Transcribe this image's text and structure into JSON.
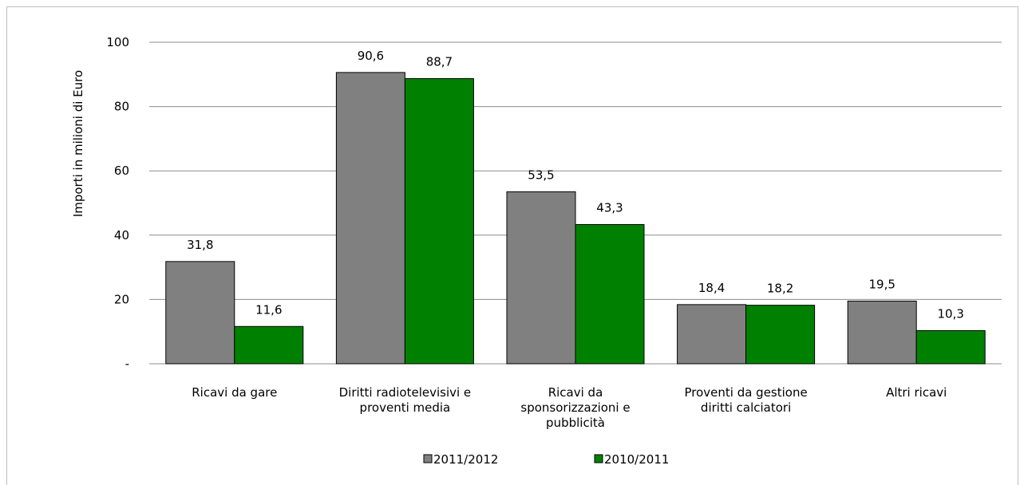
{
  "chart_data": {
    "type": "bar",
    "categories": [
      [
        "Ricavi da gare"
      ],
      [
        "Diritti radiotelevisivi e",
        "proventi media"
      ],
      [
        "Ricavi da",
        "sponsorizzazioni e",
        "pubblicità"
      ],
      [
        "Proventi da gestione",
        "diritti calciatori"
      ],
      [
        "Altri ricavi"
      ]
    ],
    "series": [
      {
        "name": "2011/2012",
        "color": "#808080",
        "values": [
          31.8,
          90.6,
          53.5,
          18.4,
          19.5
        ],
        "labels": [
          "31,8",
          "90,6",
          "53,5",
          "18,4",
          "19,5"
        ]
      },
      {
        "name": "2010/2011",
        "color": "#008000",
        "values": [
          11.6,
          88.7,
          43.3,
          18.2,
          10.3
        ],
        "labels": [
          "11,6",
          "88,7",
          "43,3",
          "18,2",
          "10,3"
        ]
      }
    ],
    "ylabel": "Importi in milioni di Euro",
    "ylim": [
      0,
      100
    ],
    "yticks": [
      0,
      20,
      40,
      60,
      80,
      100
    ],
    "ytick_labels": [
      "-",
      "20",
      "40",
      "60",
      "80",
      "100"
    ],
    "grid": true,
    "legend_position": "bottom"
  }
}
